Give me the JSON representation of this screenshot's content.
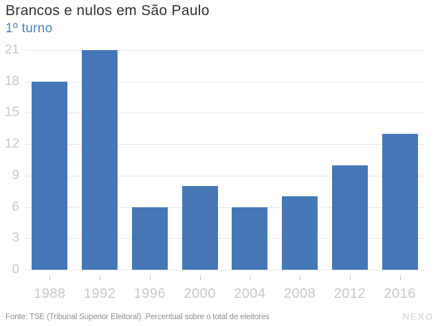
{
  "header": {
    "title": "Brancos e nulos em São Paulo",
    "subtitle": "1º turno"
  },
  "footer": {
    "source": "Fonte: TSE (Tribunal Superior Eleitoral). Percentual sobre o total de eleitores",
    "brand": "NEXO"
  },
  "colors": {
    "bar": "#4577b7",
    "subtitle": "#4a82c4",
    "title": "#313131",
    "grid": "#e8e8e8",
    "axis_label": "#c9c9c9",
    "footer_text": "#8e8e8e",
    "brand": "#dedede"
  },
  "chart_data": {
    "type": "bar",
    "categories": [
      "1988",
      "1992",
      "1996",
      "2000",
      "2004",
      "2008",
      "2012",
      "2016"
    ],
    "values": [
      18,
      21,
      6,
      8,
      6,
      7,
      10,
      13
    ],
    "title": "Brancos e nulos em São Paulo",
    "subtitle": "1º turno",
    "xlabel": "",
    "ylabel": "",
    "ylim": [
      0,
      21
    ],
    "yticks": [
      0,
      3,
      6,
      9,
      12,
      15,
      18,
      21
    ],
    "grid": true,
    "legend": false
  }
}
